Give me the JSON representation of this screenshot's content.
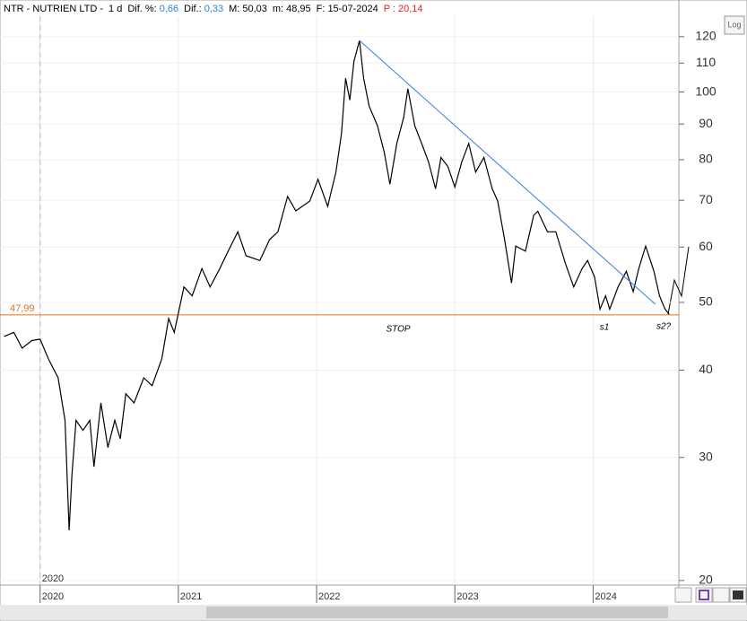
{
  "header": {
    "symbol": "NTR - NUTRIEN LTD -",
    "period": "1 d",
    "fields": [
      {
        "label": "Dif. %:",
        "value": "0,66",
        "color": "#2a7fd4"
      },
      {
        "label": "Dif.:",
        "value": "0,33",
        "color": "#2a7fd4"
      },
      {
        "label": "M:",
        "value": "50,03",
        "color": "#000000"
      },
      {
        "label": "m:",
        "value": "48,95",
        "color": "#000000"
      },
      {
        "label": "F:",
        "value": "15-07-2024",
        "color": "#000000"
      },
      {
        "label": "P :",
        "value": "20,14",
        "color": "#e02020"
      }
    ]
  },
  "toolbar": {
    "log_button": "Log"
  },
  "chart_data": {
    "type": "line",
    "log_scale": true,
    "grid": true,
    "xlim": [
      2019.71,
      2024.62
    ],
    "xticks": [
      2020,
      2021,
      2022,
      2023,
      2024
    ],
    "ylim": [
      19.7,
      128.4
    ],
    "yticks": [
      20,
      30,
      40,
      50,
      60,
      70,
      80,
      90,
      100,
      110,
      120
    ],
    "vline": {
      "value": 2020
    },
    "color": "#000000",
    "x": [
      2019.74,
      2019.81,
      2019.87,
      2019.94,
      2020.0,
      2020.06,
      2020.13,
      2020.18,
      2020.21,
      2020.23,
      2020.26,
      2020.31,
      2020.36,
      2020.39,
      2020.44,
      2020.49,
      2020.54,
      2020.58,
      2020.62,
      2020.68,
      2020.75,
      2020.81,
      2020.88,
      2020.93,
      2020.97,
      2021.04,
      2021.1,
      2021.17,
      2021.23,
      2021.3,
      2021.36,
      2021.43,
      2021.49,
      2021.59,
      2021.66,
      2021.72,
      2021.79,
      2021.85,
      2021.95,
      2022.01,
      2022.08,
      2022.14,
      2022.18,
      2022.21,
      2022.24,
      2022.27,
      2022.31,
      2022.34,
      2022.38,
      2022.44,
      2022.49,
      2022.53,
      2022.58,
      2022.63,
      2022.66,
      2022.71,
      2022.76,
      2022.81,
      2022.86,
      2022.9,
      2022.95,
      2023.0,
      2023.05,
      2023.1,
      2023.15,
      2023.21,
      2023.27,
      2023.31,
      2023.36,
      2023.41,
      2023.44,
      2023.51,
      2023.57,
      2023.6,
      2023.67,
      2023.73,
      2023.8,
      2023.86,
      2023.92,
      2023.96,
      2024.01,
      2024.05,
      2024.09,
      2024.12,
      2024.18,
      2024.24,
      2024.29,
      2024.33,
      2024.38,
      2024.44,
      2024.48,
      2024.52,
      2024.55
    ],
    "values": [
      44.7,
      45.3,
      43.0,
      44.1,
      44.3,
      41.5,
      39.0,
      33.9,
      23.6,
      28.3,
      33.9,
      32.8,
      33.9,
      29.1,
      35.9,
      31.0,
      33.9,
      31.9,
      37.0,
      35.9,
      39.0,
      38.0,
      41.5,
      47.4,
      45.3,
      52.6,
      51.1,
      55.9,
      52.6,
      55.9,
      59.2,
      63.1,
      58.3,
      57.4,
      61.5,
      63.1,
      70.9,
      67.6,
      69.8,
      75.0,
      68.6,
      76.8,
      87.2,
      104.6,
      97.4,
      110.7,
      118.5,
      104.6,
      95.5,
      89.5,
      81.9,
      73.8,
      84.4,
      92.0,
      101.1,
      89.5,
      84.4,
      79.4,
      72.7,
      80.6,
      78.2,
      73.1,
      79.4,
      84.4,
      76.8,
      80.6,
      72.7,
      69.8,
      61.5,
      53.3,
      60.2,
      59.2,
      66.6,
      67.5,
      63.1,
      63.1,
      56.8,
      52.6,
      55.9,
      57.4,
      54.4,
      48.9,
      51.1,
      48.9,
      52.6,
      55.4,
      51.8,
      55.9,
      60.2,
      55.4,
      51.1,
      48.9,
      48.1
    ],
    "hlines": [
      {
        "value": 47.99,
        "label": "47,99",
        "color": "#e07020"
      }
    ],
    "trendlines": [
      {
        "x": [
          2022.31,
          2024.45
        ],
        "values": [
          118.5,
          49.7
        ],
        "color": "#3b7dd8"
      }
    ],
    "annotations": [
      "STOP",
      "s1",
      "s2?"
    ]
  }
}
